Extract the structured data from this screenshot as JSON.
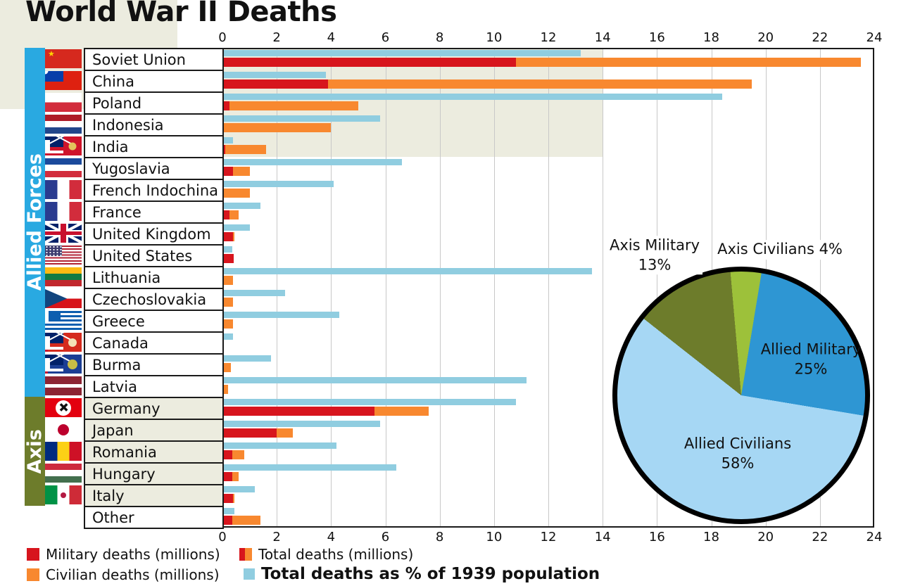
{
  "title": "World War II Deaths",
  "groups": {
    "allied": "Allied Forces",
    "axis": "Axis"
  },
  "axis_ticks": [
    0,
    2,
    4,
    6,
    8,
    10,
    12,
    14,
    16,
    18,
    20,
    22,
    24
  ],
  "legend": {
    "military": "Military deaths (millions)",
    "civilian": "Civilian deaths (millions)",
    "total": "Total deaths (millions)",
    "pct": "Total deaths as % of 1939 population"
  },
  "pie_labels": {
    "axis_military": [
      "Axis Military",
      "13%"
    ],
    "axis_civilians": [
      "Axis Civilians 4%"
    ],
    "allied_military": [
      "Allied Military",
      "25%"
    ],
    "allied_civilians": [
      "Allied Civilians",
      "58%"
    ]
  },
  "colors": {
    "military": "#d7151d",
    "civilian": "#f8882f",
    "pct_population": "#90cde0",
    "allied_band": "#29a9e1",
    "axis_band": "#6d7c2b",
    "axis_row_bg": "#ececdf",
    "grid": "#c8c8c8",
    "plot_border": "#1a1a1a",
    "pie_axis_military": "#6d7c2b",
    "pie_axis_civilians": "#9dc13a",
    "pie_allied_military": "#2e96d3",
    "pie_allied_civilians": "#a6d7f4"
  },
  "chart_data": [
    {
      "type": "bar",
      "title": "World War II Deaths",
      "orientation": "horizontal",
      "x_axis": {
        "min": 0,
        "max": 24,
        "tick_step": 2,
        "grid": true
      },
      "series_legend": [
        "Military deaths (millions)",
        "Civilian deaths (millions)",
        "Total deaths (millions)",
        "Total deaths as % of 1939 population"
      ],
      "note": "Each country shows a stacked bar (military+civilian = total deaths, millions) and a light blue bar (total deaths as % of 1939 population).",
      "rows": [
        {
          "country": "Soviet Union",
          "group": "allied",
          "military": 10.8,
          "civilian": 12.7,
          "total": 23.5,
          "pct_1939_population": 13.2,
          "flag": {
            "base": "#d6291e",
            "star": {
              "char": "★",
              "color": "#ffd400"
            }
          }
        },
        {
          "country": "China",
          "group": "allied",
          "military": 3.9,
          "civilian": 15.6,
          "total": 19.5,
          "pct_1939_population": 3.8,
          "flag": {
            "base": "#de2110",
            "canton": {
              "color": "#073ea9",
              "style": "disc"
            }
          }
        },
        {
          "country": "Poland",
          "group": "allied",
          "military": 0.25,
          "civilian": 4.75,
          "total": 5.0,
          "pct_1939_population": 18.4,
          "flag": {
            "stripes": {
              "dir": "h",
              "colors": [
                "#ffffff",
                "#d22c3c"
              ]
            }
          }
        },
        {
          "country": "Indonesia",
          "group": "allied",
          "military": 0,
          "civilian": 4.0,
          "total": 4.0,
          "pct_1939_population": 5.8,
          "flag": {
            "stripes": {
              "dir": "h",
              "colors": [
                "#ae1c28",
                "#ffffff",
                "#21468b"
              ]
            }
          }
        },
        {
          "country": "India",
          "group": "allied",
          "military": 0.1,
          "civilian": 1.5,
          "total": 1.6,
          "pct_1939_population": 0.4,
          "flag": {
            "base": "#cf142b",
            "canton": {
              "color": "#012169",
              "style": "uk"
            },
            "disc": {
              "color": "#e3c25c",
              "pos": "right",
              "size": 0.4
            }
          }
        },
        {
          "country": "Yugoslavia",
          "group": "allied",
          "military": 0.4,
          "civilian": 0.6,
          "total": 1.0,
          "pct_1939_population": 6.6,
          "flag": {
            "stripes": {
              "dir": "h",
              "colors": [
                "#1b4a9c",
                "#ffffff",
                "#d22c3c"
              ]
            }
          }
        },
        {
          "country": "French Indochina",
          "group": "allied",
          "military": 0,
          "civilian": 1.0,
          "total": 1.0,
          "pct_1939_population": 4.1,
          "flag": {
            "stripes": {
              "dir": "v",
              "colors": [
                "#2a3b8f",
                "#ffffff",
                "#d22c3c"
              ]
            }
          }
        },
        {
          "country": "France",
          "group": "allied",
          "military": 0.25,
          "civilian": 0.35,
          "total": 0.6,
          "pct_1939_population": 1.4,
          "flag": {
            "stripes": {
              "dir": "v",
              "colors": [
                "#2a3b8f",
                "#ffffff",
                "#d22c3c"
              ]
            }
          }
        },
        {
          "country": "United Kingdom",
          "group": "allied",
          "military": 0.4,
          "civilian": 0.05,
          "total": 0.45,
          "pct_1939_population": 1.0,
          "flag": {
            "uk": true
          }
        },
        {
          "country": "United States",
          "group": "allied",
          "military": 0.42,
          "civilian": 0,
          "total": 0.42,
          "pct_1939_population": 0.35,
          "flag": {
            "us": true
          }
        },
        {
          "country": "Lithuania",
          "group": "allied",
          "military": 0,
          "civilian": 0.4,
          "total": 0.4,
          "pct_1939_population": 13.6,
          "flag": {
            "stripes": {
              "dir": "h",
              "colors": [
                "#fdb913",
                "#127a43",
                "#c1272d"
              ]
            }
          }
        },
        {
          "country": "Czechoslovakia",
          "group": "allied",
          "military": 0,
          "civilian": 0.4,
          "total": 0.4,
          "pct_1939_population": 2.3,
          "flag": {
            "stripes": {
              "dir": "h",
              "colors": [
                "#ffffff",
                "#d7141a"
              ]
            },
            "triangle": "#11457e"
          }
        },
        {
          "country": "Greece",
          "group": "allied",
          "military": 0,
          "civilian": 0.4,
          "total": 0.4,
          "pct_1939_population": 4.3,
          "flag": {
            "greece": true
          }
        },
        {
          "country": "Canada",
          "group": "allied",
          "military": 0.05,
          "civilian": 0,
          "total": 0.05,
          "pct_1939_population": 0.4,
          "flag": {
            "base": "#d52b1e",
            "canton": {
              "color": "#012169",
              "style": "uk"
            },
            "disc": {
              "color": "#f3e2b8",
              "pos": "right",
              "size": 0.45
            }
          }
        },
        {
          "country": "Burma",
          "group": "allied",
          "military": 0,
          "civilian": 0.3,
          "total": 0.3,
          "pct_1939_population": 1.8,
          "flag": {
            "base": "#1b3e94",
            "canton": {
              "color": "#012169",
              "style": "uk"
            },
            "disc": {
              "color": "#c9bd45",
              "pos": "right",
              "size": 0.5
            }
          }
        },
        {
          "country": "Latvia",
          "group": "allied",
          "military": 0,
          "civilian": 0.2,
          "total": 0.2,
          "pct_1939_population": 11.2,
          "flag": {
            "stripes": {
              "dir": "h",
              "colors": [
                "#8c2433",
                "#ffffff",
                "#8c2433"
              ],
              "weights": [
                2,
                1,
                2
              ]
            }
          }
        },
        {
          "country": "Germany",
          "group": "axis",
          "military": 5.6,
          "civilian": 2.0,
          "total": 7.6,
          "pct_1939_population": 10.8,
          "flag": {
            "base": "#e3000f",
            "disc": {
              "color": "#ffffff",
              "pos": "center",
              "size": 0.8,
              "char": "✚",
              "char_color": "#111111",
              "rotate": 45
            }
          }
        },
        {
          "country": "Japan",
          "group": "axis",
          "military": 2.0,
          "civilian": 0.6,
          "total": 2.6,
          "pct_1939_population": 5.8,
          "flag": {
            "base": "#ffffff",
            "disc": {
              "color": "#bc002d",
              "pos": "center",
              "size": 0.6
            }
          }
        },
        {
          "country": "Romania",
          "group": "axis",
          "military": 0.35,
          "civilian": 0.45,
          "total": 0.8,
          "pct_1939_population": 4.2,
          "flag": {
            "stripes": {
              "dir": "v",
              "colors": [
                "#002b7f",
                "#fcd116",
                "#ce1126"
              ]
            }
          }
        },
        {
          "country": "Hungary",
          "group": "axis",
          "military": 0.35,
          "civilian": 0.25,
          "total": 0.6,
          "pct_1939_population": 6.4,
          "flag": {
            "stripes": {
              "dir": "h",
              "colors": [
                "#cd2a3e",
                "#ffffff",
                "#436f4d"
              ]
            }
          }
        },
        {
          "country": "Italy",
          "group": "axis",
          "military": 0.4,
          "civilian": 0.05,
          "total": 0.45,
          "pct_1939_population": 1.2,
          "flag": {
            "stripes": {
              "dir": "v",
              "colors": [
                "#009246",
                "#ffffff",
                "#ce2b37"
              ]
            },
            "disc": {
              "color": "#b31942",
              "pos": "center",
              "size": 0.3
            }
          }
        },
        {
          "country": "Other",
          "group": "none",
          "military": 0.35,
          "civilian": 1.05,
          "total": 1.4,
          "pct_1939_population": 0.45,
          "flag": null
        }
      ]
    },
    {
      "type": "pie",
      "start_angle_deg": -5,
      "slices": [
        {
          "id": "axis_civilians",
          "label": "Axis Civilians",
          "pct": 4,
          "color_key": "pie_axis_civilians"
        },
        {
          "id": "allied_military",
          "label": "Allied Military",
          "pct": 25,
          "color_key": "pie_allied_military"
        },
        {
          "id": "allied_civilians",
          "label": "Allied Civilians",
          "pct": 58,
          "color_key": "pie_allied_civilians"
        },
        {
          "id": "axis_military",
          "label": "Axis Military",
          "pct": 13,
          "color_key": "pie_axis_military"
        }
      ]
    }
  ]
}
